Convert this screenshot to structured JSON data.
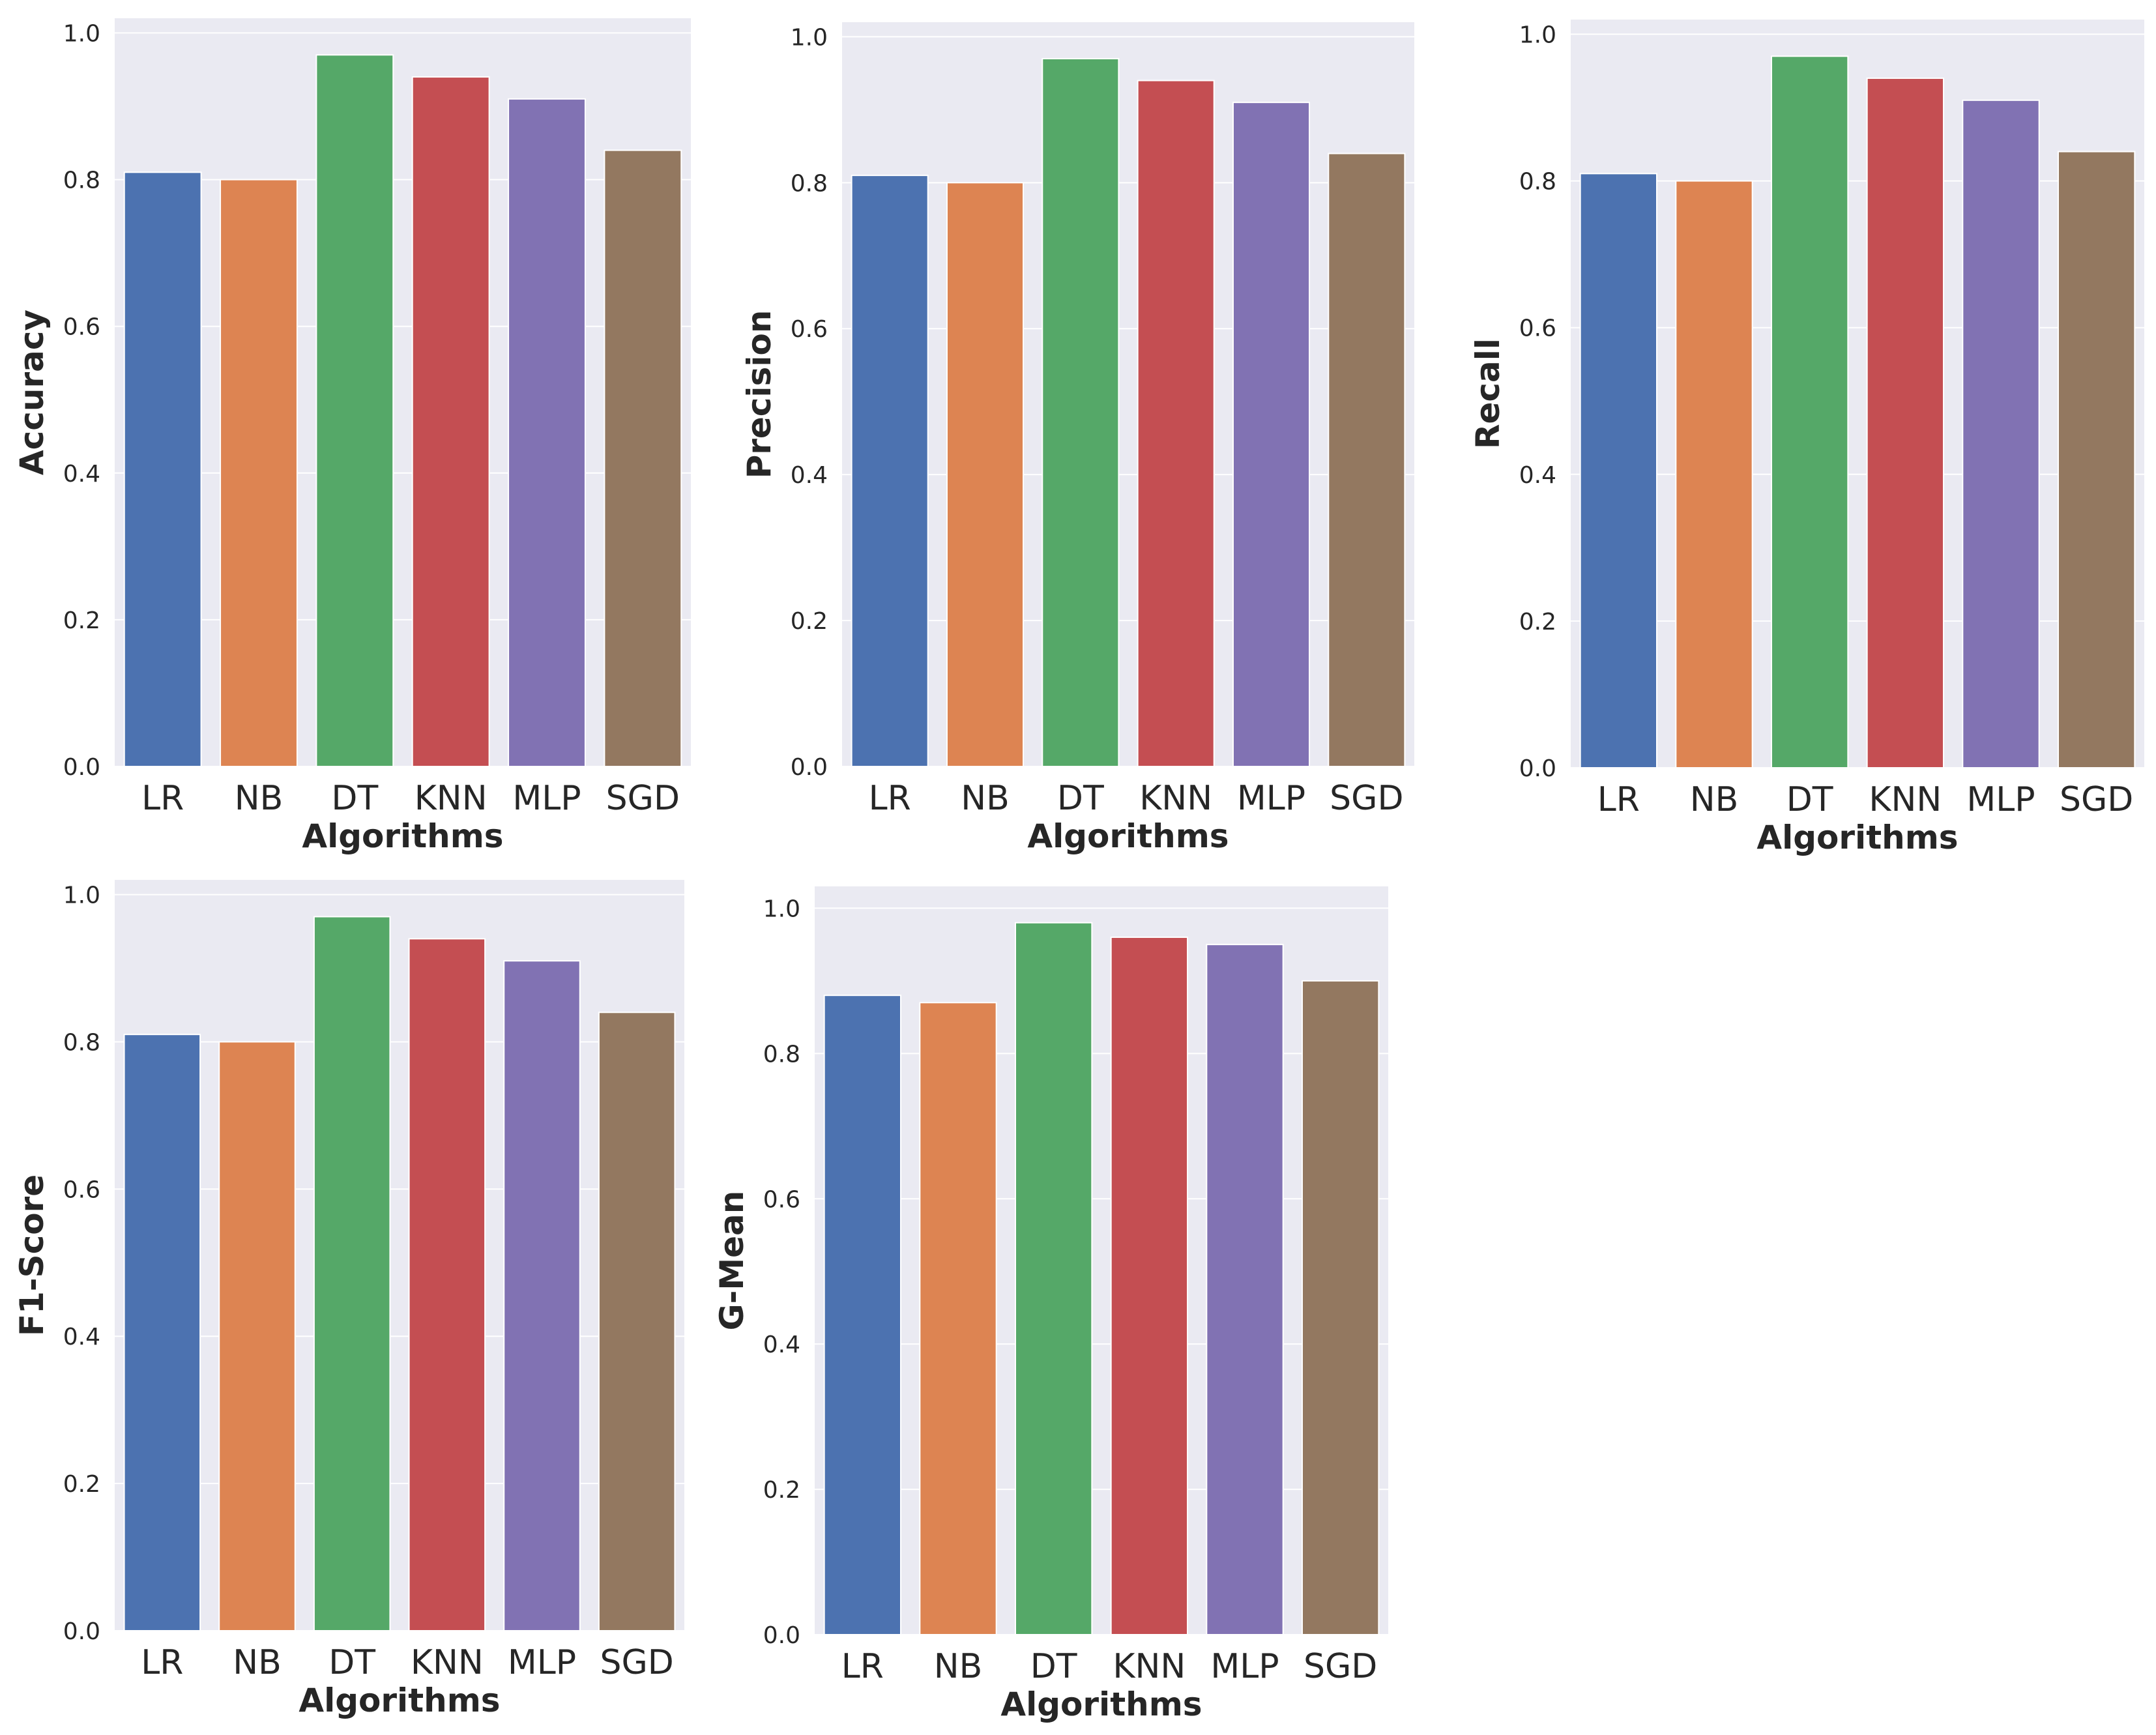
{
  "colors": {
    "background": "#eaeaf2",
    "grid": "#ffffff",
    "bars": [
      "#4c72b0",
      "#dd8452",
      "#55a868",
      "#c44e52",
      "#8172b3",
      "#937860"
    ]
  },
  "chart_data": [
    {
      "type": "bar",
      "categories": [
        "LR",
        "NB",
        "DT",
        "KNN",
        "MLP",
        "SGD"
      ],
      "values": [
        0.81,
        0.8,
        0.97,
        0.94,
        0.91,
        0.84
      ],
      "xlabel": "Algorithms",
      "ylabel": "Accuracy",
      "ylim": [
        0,
        1.02
      ],
      "yticks": [
        "0.0",
        "0.2",
        "0.4",
        "0.6",
        "0.8",
        "1.0"
      ],
      "grid": true
    },
    {
      "type": "bar",
      "categories": [
        "LR",
        "NB",
        "DT",
        "KNN",
        "MLP",
        "SGD"
      ],
      "values": [
        0.81,
        0.8,
        0.97,
        0.94,
        0.91,
        0.84
      ],
      "xlabel": "Algorithms",
      "ylabel": "Precision",
      "ylim": [
        0,
        1.02
      ],
      "yticks": [
        "0.0",
        "0.2",
        "0.4",
        "0.6",
        "0.8",
        "1.0"
      ],
      "grid": true
    },
    {
      "type": "bar",
      "categories": [
        "LR",
        "NB",
        "DT",
        "KNN",
        "MLP",
        "SGD"
      ],
      "values": [
        0.81,
        0.8,
        0.97,
        0.94,
        0.91,
        0.84
      ],
      "xlabel": "Algorithms",
      "ylabel": "Recall",
      "ylim": [
        0,
        1.02
      ],
      "yticks": [
        "0.0",
        "0.2",
        "0.4",
        "0.6",
        "0.8",
        "1.0"
      ],
      "grid": true
    },
    {
      "type": "bar",
      "categories": [
        "LR",
        "NB",
        "DT",
        "KNN",
        "MLP",
        "SGD"
      ],
      "values": [
        0.81,
        0.8,
        0.97,
        0.94,
        0.91,
        0.84
      ],
      "xlabel": "Algorithms",
      "ylabel": "F1-Score",
      "ylim": [
        0,
        1.02
      ],
      "yticks": [
        "0.0",
        "0.2",
        "0.4",
        "0.6",
        "0.8",
        "1.0"
      ],
      "grid": true
    },
    {
      "type": "bar",
      "categories": [
        "LR",
        "NB",
        "DT",
        "KNN",
        "MLP",
        "SGD"
      ],
      "values": [
        0.88,
        0.87,
        0.98,
        0.96,
        0.95,
        0.9
      ],
      "xlabel": "Algorithms",
      "ylabel": "G-Mean",
      "ylim": [
        0,
        1.03
      ],
      "yticks": [
        "0.0",
        "0.2",
        "0.4",
        "0.6",
        "0.8",
        "1.0"
      ],
      "grid": true
    }
  ]
}
